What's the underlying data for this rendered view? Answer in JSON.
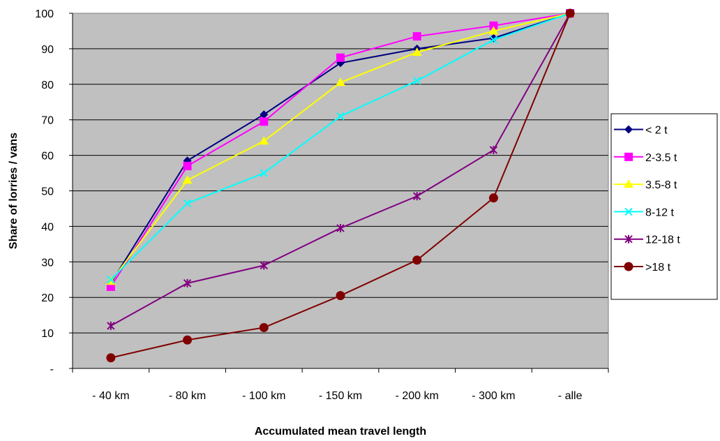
{
  "chart_data": {
    "type": "line",
    "title": "",
    "xlabel": "Accumulated mean travel length",
    "ylabel": "Share of lorries / vans",
    "categories": [
      "- 40 km",
      "- 80 km",
      "- 100 km",
      "- 150 km",
      "- 200 km",
      "- 300 km",
      "- alle"
    ],
    "y_ticks": [
      "-",
      "10",
      "20",
      "30",
      "40",
      "50",
      "60",
      "70",
      "80",
      "90",
      "100"
    ],
    "ylim": [
      0,
      100
    ],
    "grid": true,
    "plot_background": "#c0c0c0",
    "legend_position": "right",
    "series": [
      {
        "name": "< 2 t",
        "color": "#000080",
        "marker": "diamond",
        "values": [
          24,
          58.5,
          71.5,
          86,
          90,
          93,
          100
        ]
      },
      {
        "name": "2-3.5 t",
        "color": "#ff00ff",
        "marker": "square",
        "values": [
          23,
          57,
          69.5,
          87.5,
          93.5,
          96.5,
          100
        ]
      },
      {
        "name": "3.5-8 t",
        "color": "#ffff00",
        "marker": "triangle",
        "values": [
          24.5,
          53,
          64,
          80.5,
          89,
          95,
          100
        ]
      },
      {
        "name": "8-12 t",
        "color": "#00ffff",
        "marker": "x",
        "values": [
          25,
          46.5,
          55,
          71,
          81,
          92.5,
          100
        ]
      },
      {
        "name": "12-18 t",
        "color": "#800080",
        "marker": "star",
        "values": [
          12,
          24,
          29,
          39.5,
          48.5,
          61.5,
          100
        ]
      },
      {
        "name": ">18 t",
        "color": "#800000",
        "marker": "circle",
        "values": [
          3,
          8,
          11.5,
          20.5,
          30.5,
          48,
          100
        ]
      }
    ]
  }
}
